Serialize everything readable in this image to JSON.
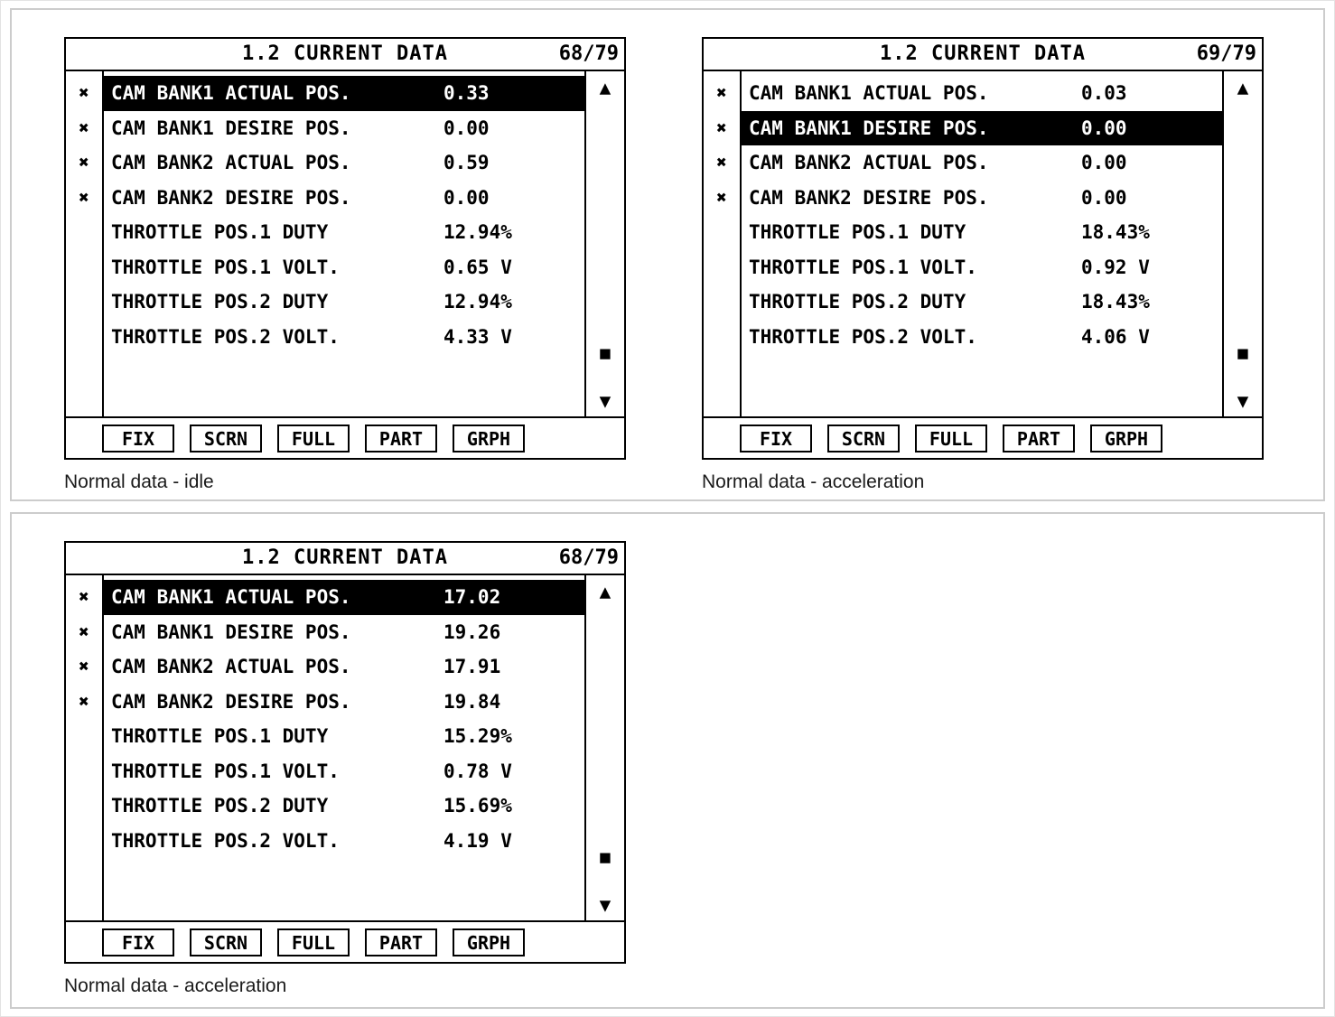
{
  "icons": {
    "fix_mark": "✖",
    "scroll_up": "▲",
    "scroll_down": "▼",
    "scroll_thumb": "■"
  },
  "panels": [
    {
      "title": "1.2 CURRENT DATA",
      "page": "68/79",
      "caption": "Normal data - idle",
      "buttons": [
        "FIX",
        "SCRN",
        "FULL",
        "PART",
        "GRPH"
      ],
      "rows": [
        {
          "marked": true,
          "selected": true,
          "label": "CAM BANK1 ACTUAL POS.",
          "value": "0.33"
        },
        {
          "marked": true,
          "selected": false,
          "label": "CAM BANK1 DESIRE POS.",
          "value": "0.00"
        },
        {
          "marked": true,
          "selected": false,
          "label": "CAM BANK2 ACTUAL POS.",
          "value": "0.59"
        },
        {
          "marked": true,
          "selected": false,
          "label": "CAM BANK2 DESIRE POS.",
          "value": "0.00"
        },
        {
          "marked": false,
          "selected": false,
          "label": "THROTTLE POS.1 DUTY",
          "value": "12.94%"
        },
        {
          "marked": false,
          "selected": false,
          "label": "THROTTLE POS.1 VOLT.",
          "value": "0.65 V"
        },
        {
          "marked": false,
          "selected": false,
          "label": "THROTTLE POS.2 DUTY",
          "value": "12.94%"
        },
        {
          "marked": false,
          "selected": false,
          "label": "THROTTLE POS.2 VOLT.",
          "value": "4.33 V"
        }
      ]
    },
    {
      "title": "1.2 CURRENT DATA",
      "page": "69/79",
      "caption": "Normal data - acceleration",
      "buttons": [
        "FIX",
        "SCRN",
        "FULL",
        "PART",
        "GRPH"
      ],
      "rows": [
        {
          "marked": true,
          "selected": false,
          "label": "CAM BANK1 ACTUAL POS.",
          "value": "0.03"
        },
        {
          "marked": true,
          "selected": true,
          "label": "CAM BANK1 DESIRE POS.",
          "value": "0.00"
        },
        {
          "marked": true,
          "selected": false,
          "label": "CAM BANK2 ACTUAL POS.",
          "value": "0.00"
        },
        {
          "marked": true,
          "selected": false,
          "label": "CAM BANK2 DESIRE POS.",
          "value": "0.00"
        },
        {
          "marked": false,
          "selected": false,
          "label": "THROTTLE POS.1 DUTY",
          "value": "18.43%"
        },
        {
          "marked": false,
          "selected": false,
          "label": "THROTTLE POS.1 VOLT.",
          "value": "0.92 V"
        },
        {
          "marked": false,
          "selected": false,
          "label": "THROTTLE POS.2 DUTY",
          "value": "18.43%"
        },
        {
          "marked": false,
          "selected": false,
          "label": "THROTTLE POS.2 VOLT.",
          "value": "4.06 V"
        }
      ]
    },
    {
      "title": "1.2 CURRENT DATA",
      "page": "68/79",
      "caption": "Normal data - acceleration",
      "buttons": [
        "FIX",
        "SCRN",
        "FULL",
        "PART",
        "GRPH"
      ],
      "rows": [
        {
          "marked": true,
          "selected": true,
          "label": "CAM BANK1 ACTUAL POS.",
          "value": "17.02"
        },
        {
          "marked": true,
          "selected": false,
          "label": "CAM BANK1 DESIRE POS.",
          "value": "19.26"
        },
        {
          "marked": true,
          "selected": false,
          "label": "CAM BANK2 ACTUAL POS.",
          "value": "17.91"
        },
        {
          "marked": true,
          "selected": false,
          "label": "CAM BANK2 DESIRE POS.",
          "value": "19.84"
        },
        {
          "marked": false,
          "selected": false,
          "label": "THROTTLE POS.1 DUTY",
          "value": "15.29%"
        },
        {
          "marked": false,
          "selected": false,
          "label": "THROTTLE POS.1 VOLT.",
          "value": "0.78 V"
        },
        {
          "marked": false,
          "selected": false,
          "label": "THROTTLE POS.2 DUTY",
          "value": "15.69%"
        },
        {
          "marked": false,
          "selected": false,
          "label": "THROTTLE POS.2 VOLT.",
          "value": "4.19 V"
        }
      ]
    }
  ]
}
